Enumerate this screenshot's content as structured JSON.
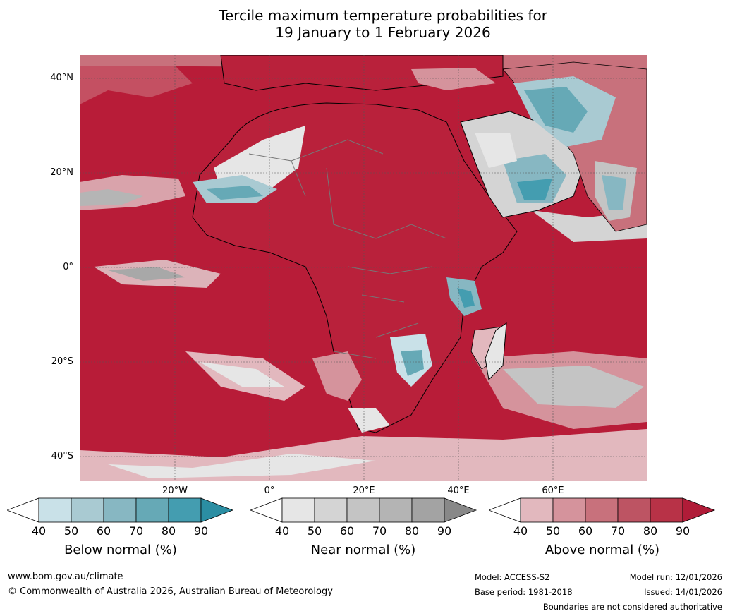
{
  "title_line1": "Tercile maximum temperature probabilities for",
  "title_line2": "19 January to 1 February 2026",
  "lat_labels": [
    "40°N",
    "20°N",
    "0°",
    "20°S",
    "40°S"
  ],
  "lon_labels": [
    "20°W",
    "0°",
    "20°E",
    "40°E",
    "60°E"
  ],
  "colorbars": [
    {
      "label": "Below normal (%)",
      "ticks": [
        "40",
        "50",
        "60",
        "70",
        "80",
        "90"
      ],
      "colors": [
        "#ffffff",
        "#c9e1e8",
        "#a9cad2",
        "#87b7c2",
        "#66a9b6",
        "#449db0",
        "#2b8ea3"
      ]
    },
    {
      "label": "Near normal (%)",
      "ticks": [
        "40",
        "50",
        "60",
        "70",
        "80",
        "90"
      ],
      "colors": [
        "#ffffff",
        "#e6e6e6",
        "#d4d4d4",
        "#c4c4c4",
        "#b4b4b4",
        "#a3a3a3",
        "#888888"
      ]
    },
    {
      "label": "Above normal (%)",
      "ticks": [
        "40",
        "50",
        "60",
        "70",
        "80",
        "90"
      ],
      "colors": [
        "#ffffff",
        "#e2b8be",
        "#d5939c",
        "#c8717c",
        "#bd5463",
        "#b83247",
        "#b01c38"
      ]
    }
  ],
  "footer": {
    "website": "www.bom.gov.au/climate",
    "copyright": "© Commonwealth of Australia 2026, Australian Bureau of Meteorology",
    "model": "Model: ACCESS-S2",
    "base_period": "Base period: 1981-2018",
    "model_run": "Model run: 12/01/2026",
    "issued": "Issued: 14/01/2026",
    "disclaimer": "Boundaries are not considered authoritative"
  }
}
